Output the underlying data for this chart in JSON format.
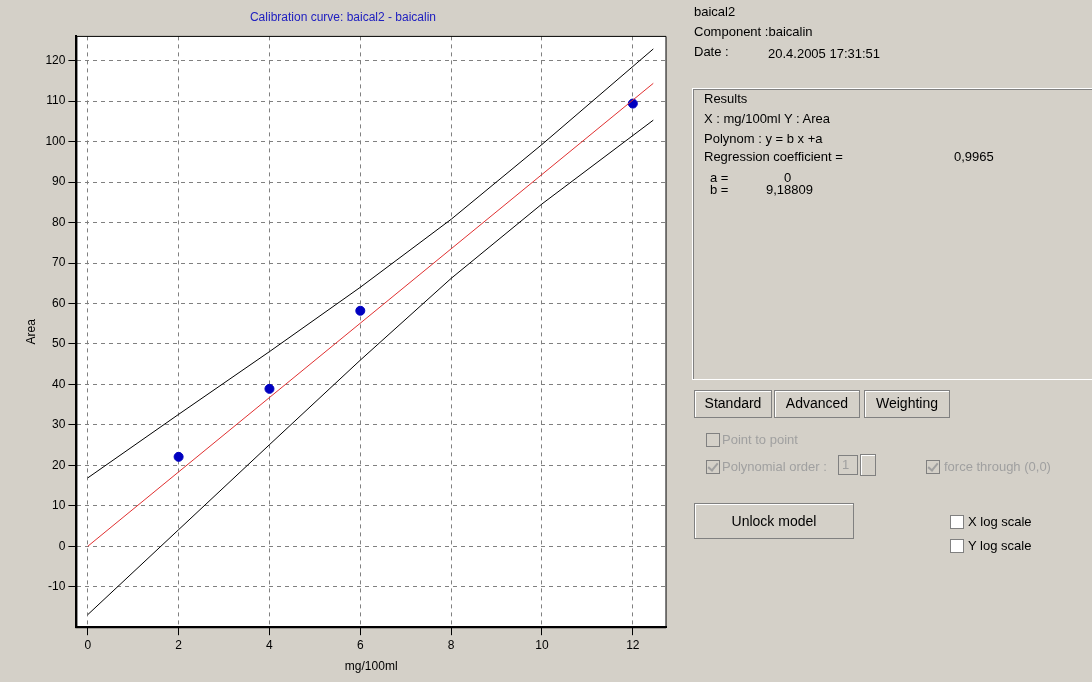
{
  "chart_data": {
    "type": "scatter",
    "title": "Calibration curve: baical2 - baicalin",
    "xlabel": "mg/100ml",
    "ylabel": "Area",
    "xlim": [
      -0.25,
      12.73
    ],
    "xticks": [
      0,
      2,
      4,
      6,
      8,
      10,
      12
    ],
    "ylim": [
      -20,
      126
    ],
    "yticks": [
      -10,
      0,
      10,
      20,
      30,
      40,
      50,
      60,
      70,
      80,
      90,
      100,
      110,
      120
    ],
    "grid": true,
    "legend": false,
    "series": [
      {
        "type": "line",
        "marker": "none",
        "color": "#000000",
        "x": [
          0,
          2,
          4,
          6,
          8,
          10,
          12.45
        ],
        "values": [
          16.9,
          32.6,
          48.1,
          64,
          80.8,
          99.3,
          122.9
        ]
      },
      {
        "type": "line",
        "marker": "none",
        "color": "#000000",
        "x": [
          0,
          2,
          4,
          6,
          8,
          10,
          12.45
        ],
        "values": [
          -16.9,
          4.1,
          25.1,
          46,
          66.2,
          84.6,
          105.3
        ]
      },
      {
        "type": "line",
        "marker": "none",
        "color": "#e03030",
        "x": [
          0,
          12.45
        ],
        "values": [
          0,
          114.4
        ]
      },
      {
        "type": "scatter",
        "marker": "circle",
        "color": "#0000c0",
        "x": [
          2,
          4,
          6,
          12
        ],
        "values": [
          22.1,
          38.9,
          58.2,
          109.4
        ]
      }
    ],
    "annotations": [
      "baical2",
      "Component :baicalin",
      "Date :",
      "20.4.2005 17:31:51",
      "Results",
      "X : mg/100ml    Y : Area",
      "Polynom : y = b x +a",
      "Regression coefficient =",
      "0,9965",
      "a =",
      "0",
      "b =",
      "9,18809",
      "Standard",
      "Advanced",
      "Weighting",
      "Point to point",
      "Polynomial order :",
      "1",
      "force through (0,0)",
      "Unlock model",
      "X log scale",
      "Y log scale"
    ]
  }
}
